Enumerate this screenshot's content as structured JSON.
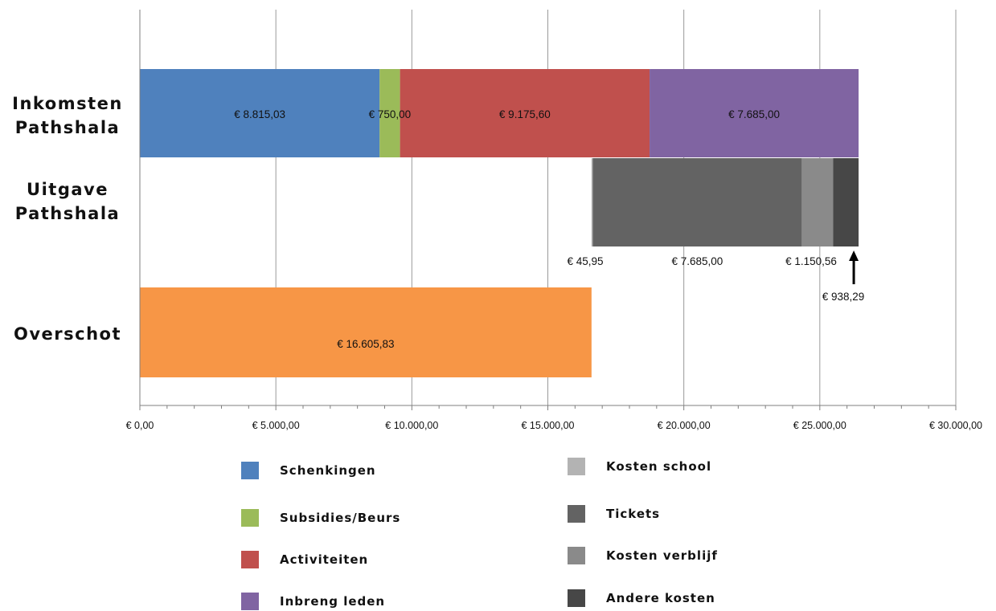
{
  "chart_data": {
    "type": "bar",
    "orientation": "horizontal",
    "stacked": true,
    "xlim": [
      0,
      30000
    ],
    "x_ticks": [
      0,
      5000,
      10000,
      15000,
      20000,
      25000,
      30000
    ],
    "x_tick_labels": [
      "€ 0,00",
      "€ 5.000,00",
      "€ 10.000,00",
      "€ 15.000,00",
      "€ 20.000,00",
      "€ 25.000,00",
      "€ 30.000,00"
    ],
    "grid": "vertical",
    "categories": [
      "Inkomsten\nPathshala",
      "Uitgave\nPathshala",
      "Overschot"
    ],
    "bars": [
      {
        "category": "Inkomsten Pathshala",
        "start": 0,
        "segments": [
          {
            "series": "Schenkingen",
            "value": 8815.03,
            "label": "€ 8.815,03",
            "color": "#4f81bd"
          },
          {
            "series": "Subsidies/Beurs",
            "value": 750.0,
            "label": "€ 750,00",
            "color": "#9bbb59"
          },
          {
            "series": "Activiteiten",
            "value": 9175.6,
            "label": "€ 9.175,60",
            "color": "#c0504d"
          },
          {
            "series": "Inbreng leden",
            "value": 7685.0,
            "label": "€ 7.685,00",
            "color": "#8064a2"
          }
        ]
      },
      {
        "category": "Uitgave Pathshala",
        "start": 16605.83,
        "segments": [
          {
            "series": "Kosten school",
            "value": 45.95,
            "label": "€ 45,95",
            "color": "#b3b3b3"
          },
          {
            "series": "Tickets",
            "value": 7685.0,
            "label": "€ 7.685,00",
            "color": "#636363"
          },
          {
            "series": "Kosten verblijf",
            "value": 1150.56,
            "label": "€ 1.150,56",
            "color": "#8a8a8a"
          },
          {
            "series": "Andere kosten",
            "value": 938.29,
            "label": "€ 938,29",
            "color": "#474747"
          }
        ]
      },
      {
        "category": "Overschot",
        "start": 0,
        "segments": [
          {
            "series": "Overschot",
            "value": 16605.83,
            "label": "€ 16.605,83",
            "color": "#f79646"
          }
        ]
      }
    ],
    "legend": {
      "placement": "bottom",
      "items": [
        {
          "name": "Schenkingen",
          "color": "#4f81bd"
        },
        {
          "name": "Subsidies/Beurs",
          "color": "#9bbb59"
        },
        {
          "name": "Activiteiten",
          "color": "#c0504d"
        },
        {
          "name": "Inbreng leden",
          "color": "#8064a2"
        },
        {
          "name": "Kosten school",
          "color": "#b3b3b3"
        },
        {
          "name": "Tickets",
          "color": "#636363"
        },
        {
          "name": "Kosten verblijf",
          "color": "#8a8a8a"
        },
        {
          "name": "Andere kosten",
          "color": "#474747"
        }
      ]
    }
  }
}
